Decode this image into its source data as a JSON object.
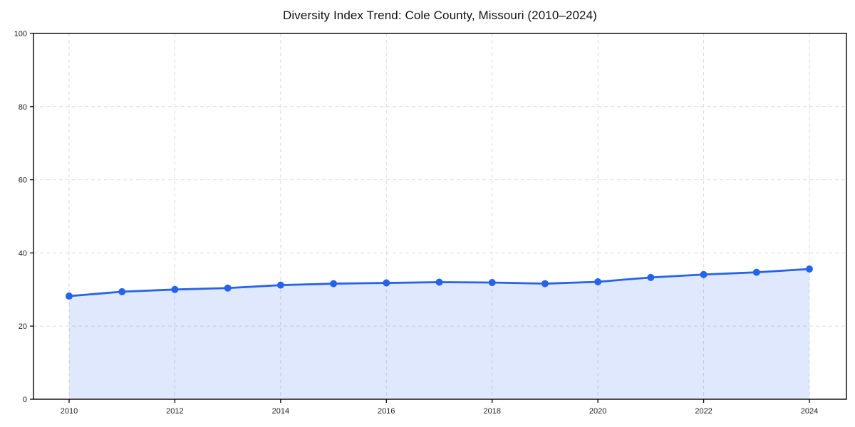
{
  "chart_data": {
    "type": "line",
    "title": "Diversity Index Trend: Cole County, Missouri (2010–2024)",
    "xlabel": "",
    "ylabel": "",
    "x": [
      2010,
      2011,
      2012,
      2013,
      2014,
      2015,
      2016,
      2017,
      2018,
      2019,
      2020,
      2021,
      2022,
      2023,
      2024
    ],
    "series": [
      {
        "name": "Diversity Index",
        "values": [
          28.2,
          29.4,
          30.0,
          30.4,
          31.2,
          31.6,
          31.8,
          32.0,
          31.9,
          31.6,
          32.1,
          33.3,
          34.1,
          34.7,
          35.6
        ]
      }
    ],
    "ylim": [
      0,
      100
    ],
    "yticks": [
      0,
      20,
      40,
      60,
      80,
      100
    ],
    "xticks": [
      2010,
      2012,
      2014,
      2016,
      2018,
      2020,
      2022,
      2024
    ],
    "grid": true,
    "grid_style": "dashed",
    "legend": "none",
    "marker": "circle",
    "area_fill": true,
    "colors": {
      "line": "#2563eb",
      "marker": "#2563eb",
      "area_fill_opacity": 0.15,
      "grid": "#dcdcdc",
      "axis": "#000000",
      "text": "#1a1a1a",
      "background": "#ffffff"
    }
  }
}
